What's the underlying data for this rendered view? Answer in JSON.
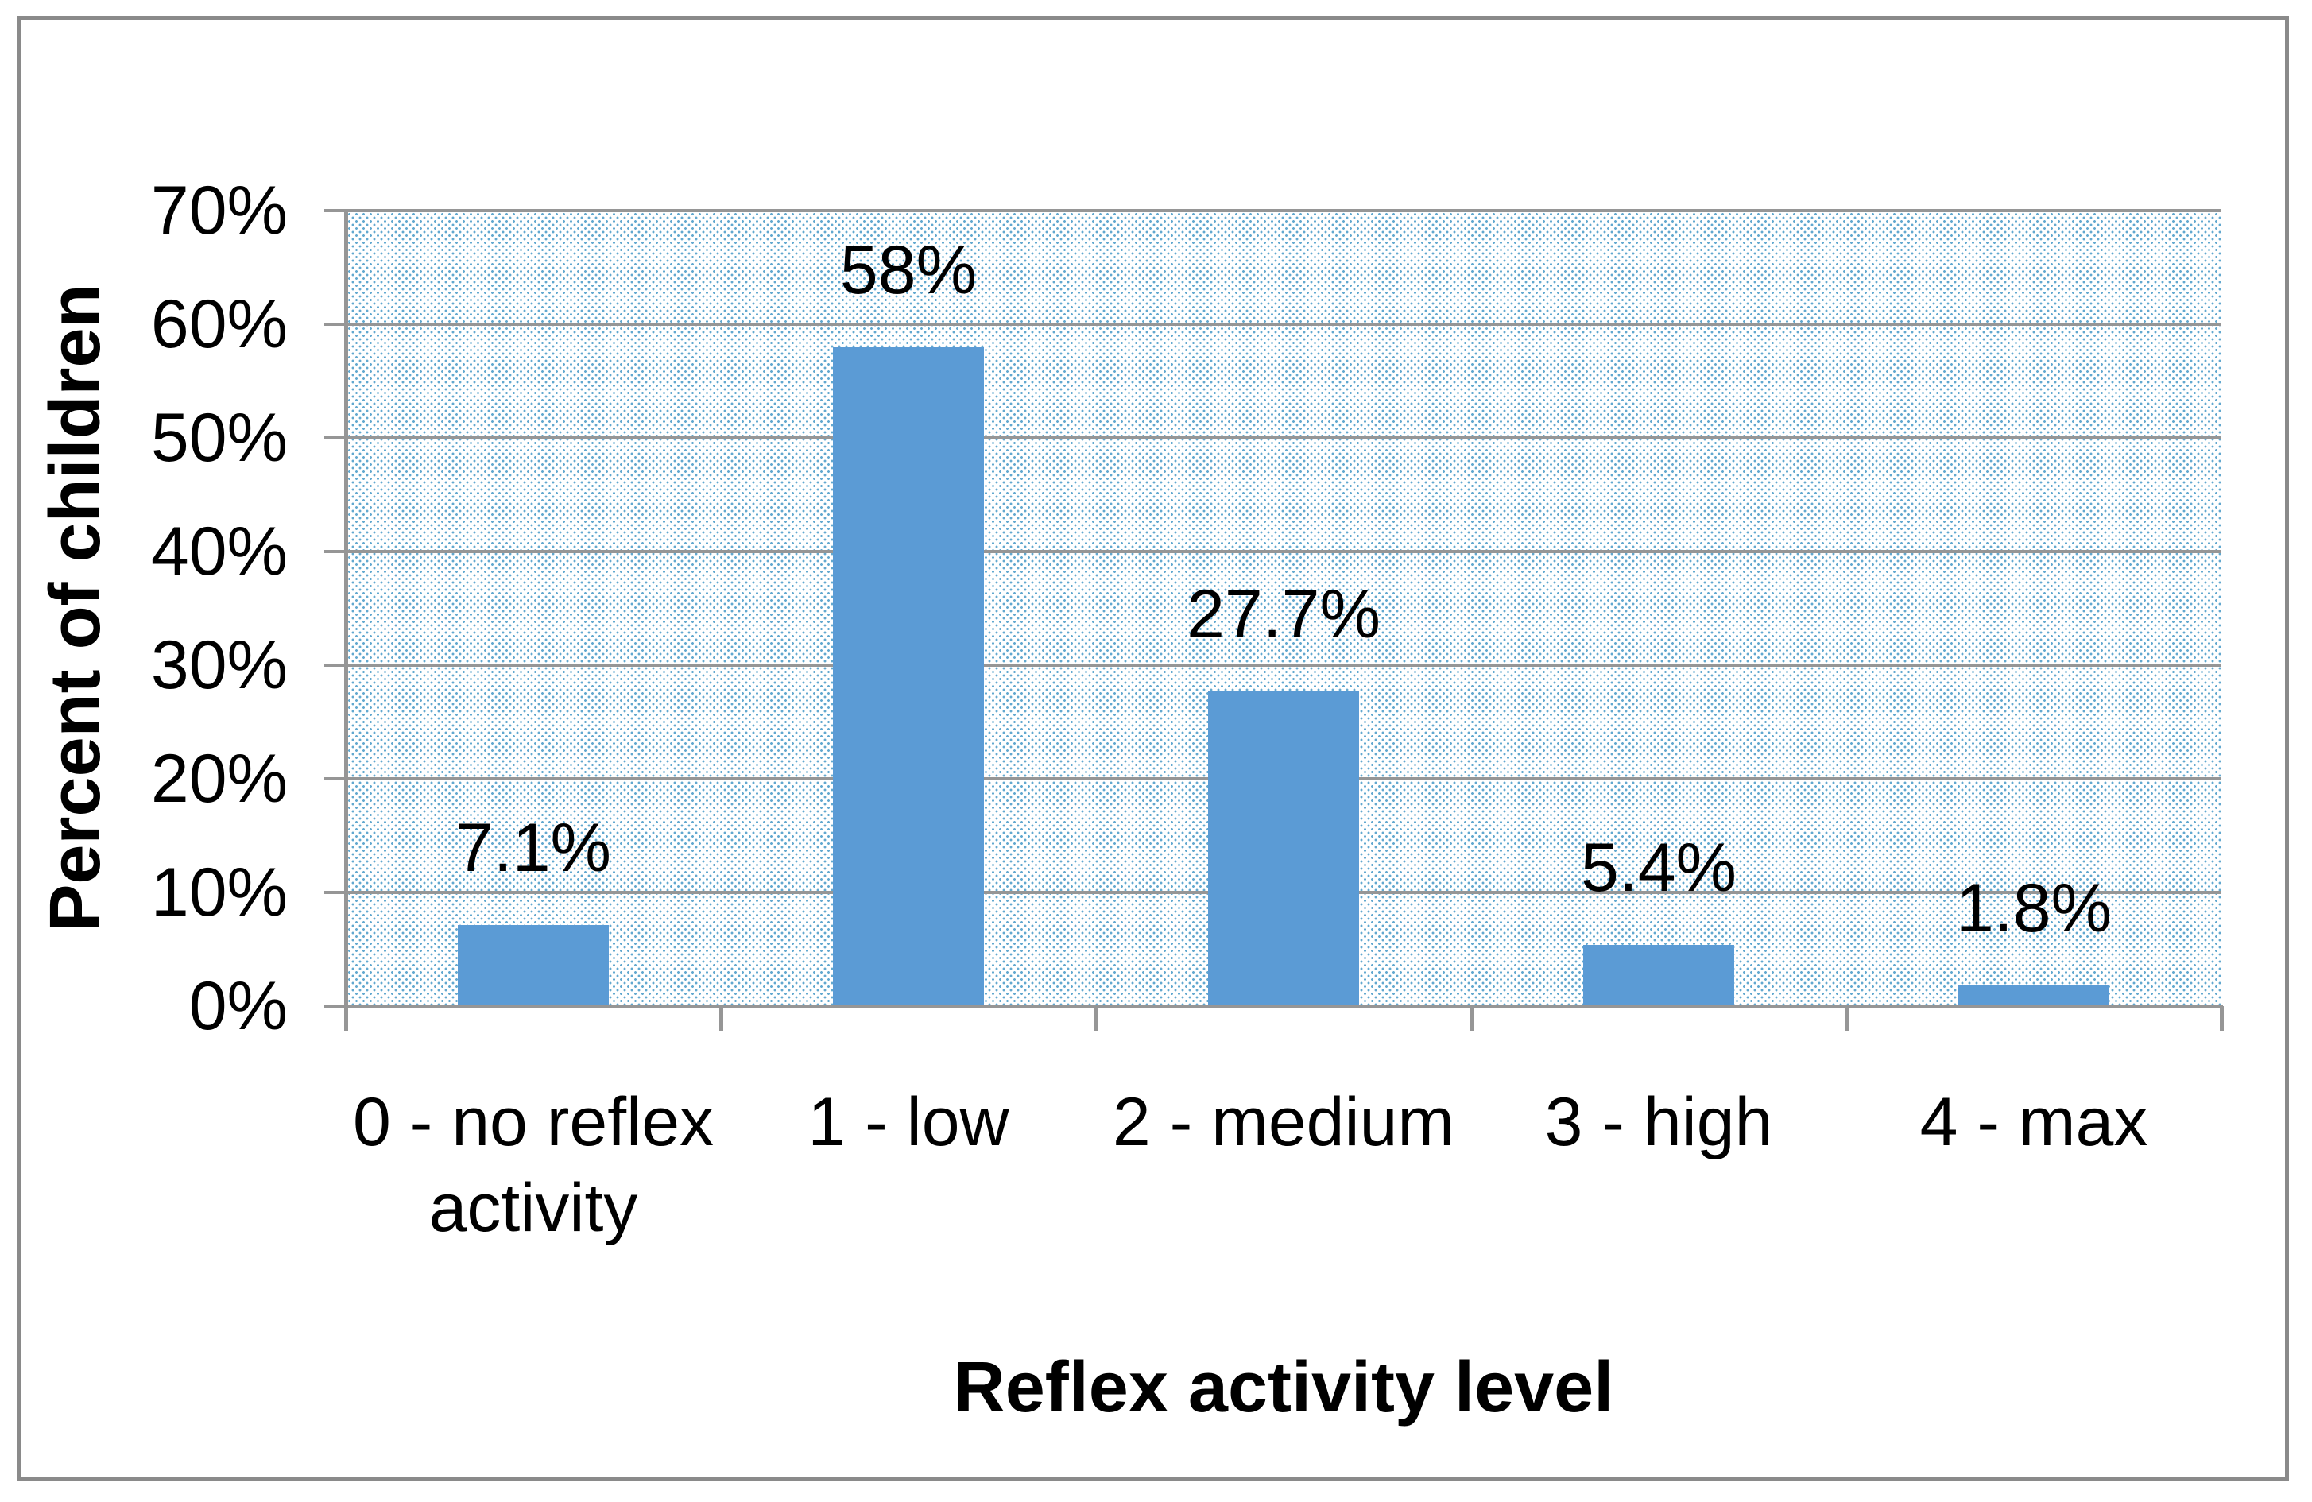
{
  "chart_data": {
    "type": "bar",
    "title": "",
    "categories": [
      "0 - no reflex activity",
      "1 - low",
      "2 - medium",
      "3 - high",
      "4 - max"
    ],
    "category_lines": [
      [
        "0 - no reflex",
        "activity"
      ],
      [
        "1 - low"
      ],
      [
        "2 - medium"
      ],
      [
        "3 - high"
      ],
      [
        "4 - max"
      ]
    ],
    "values": [
      7.1,
      58,
      27.7,
      5.4,
      1.8
    ],
    "data_labels": [
      "7.1%",
      "58%",
      "27.7%",
      "5.4%",
      "1.8%"
    ],
    "xlabel": "Reflex activity level",
    "ylabel": "Percent of children",
    "ylim": [
      0,
      70
    ],
    "yticks": [
      {
        "value": 0,
        "label": "0%"
      },
      {
        "value": 10,
        "label": "10%"
      },
      {
        "value": 20,
        "label": "20%"
      },
      {
        "value": 30,
        "label": "30%"
      },
      {
        "value": 40,
        "label": "40%"
      },
      {
        "value": 50,
        "label": "50%"
      },
      {
        "value": 60,
        "label": "60%"
      },
      {
        "value": 70,
        "label": "70%"
      }
    ],
    "grid": true,
    "legend": false,
    "plot_background": "dotted-pattern",
    "colors": {
      "bar": "#5b9bd5",
      "gridline": "#969696",
      "axis": "#969696",
      "pattern_dot": "#62a8cf",
      "frame_border": "#8a8a8a",
      "text": "#000000",
      "background": "#ffffff"
    }
  }
}
